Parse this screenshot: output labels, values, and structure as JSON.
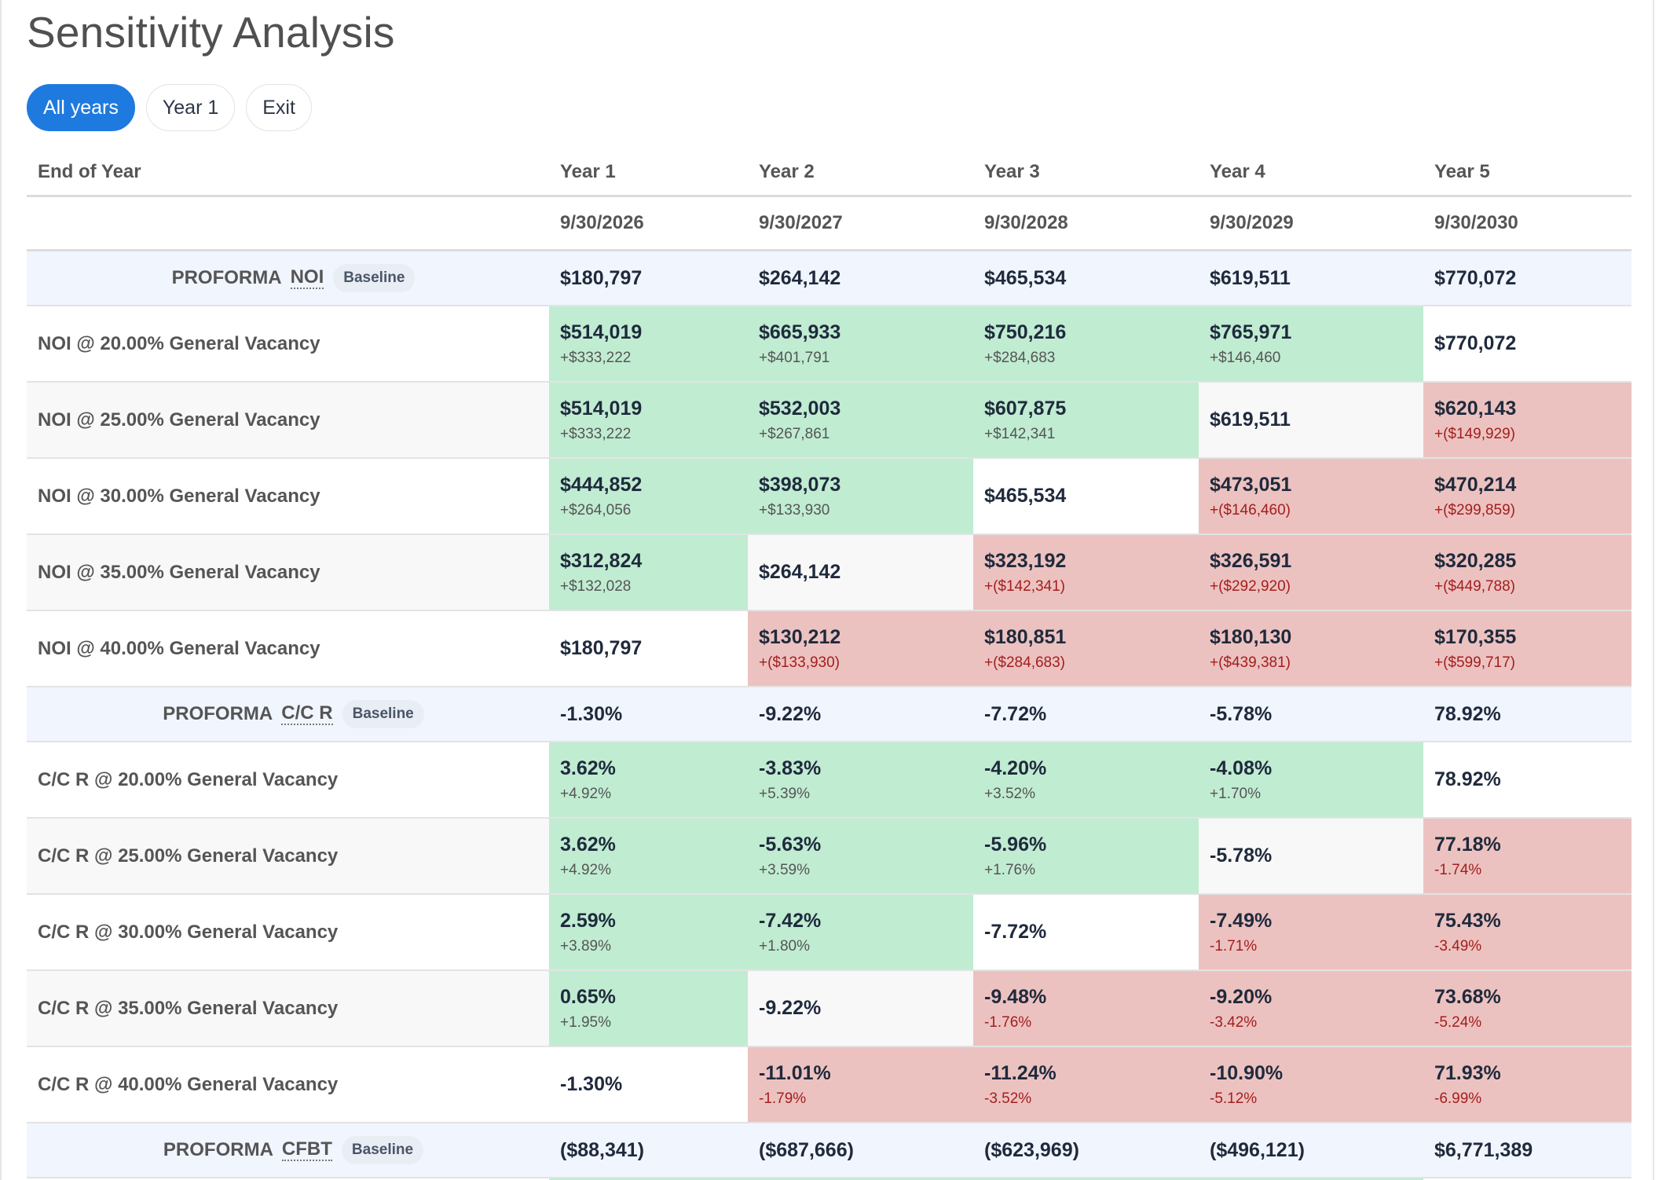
{
  "page": {
    "title": "Sensitivity Analysis"
  },
  "filters": [
    {
      "label": "All years",
      "active": true
    },
    {
      "label": "Year 1",
      "active": false
    },
    {
      "label": "Exit",
      "active": false
    }
  ],
  "table": {
    "header": {
      "label": "End of Year",
      "years": [
        "Year 1",
        "Year 2",
        "Year 3",
        "Year 4",
        "Year 5"
      ]
    },
    "dates": [
      "9/30/2026",
      "9/30/2027",
      "9/30/2028",
      "9/30/2029",
      "9/30/2030"
    ],
    "sections": [
      {
        "baseline": {
          "prefix": "PROFORMA",
          "metric": "NOI",
          "badge": "Baseline",
          "values": [
            "$180,797",
            "$264,142",
            "$465,534",
            "$619,511",
            "$770,072"
          ]
        },
        "rows": [
          {
            "label": "NOI @ 20.00% General Vacancy",
            "cells": [
              {
                "value": "$514,019",
                "delta": "+$333,222",
                "status": "positive"
              },
              {
                "value": "$665,933",
                "delta": "+$401,791",
                "status": "positive"
              },
              {
                "value": "$750,216",
                "delta": "+$284,683",
                "status": "positive"
              },
              {
                "value": "$765,971",
                "delta": "+$146,460",
                "status": "positive"
              },
              {
                "value": "$770,072",
                "delta": null,
                "status": "neutral"
              }
            ]
          },
          {
            "label": "NOI @ 25.00% General Vacancy",
            "cells": [
              {
                "value": "$514,019",
                "delta": "+$333,222",
                "status": "positive"
              },
              {
                "value": "$532,003",
                "delta": "+$267,861",
                "status": "positive"
              },
              {
                "value": "$607,875",
                "delta": "+$142,341",
                "status": "positive"
              },
              {
                "value": "$619,511",
                "delta": null,
                "status": "neutral"
              },
              {
                "value": "$620,143",
                "delta": "+($149,929)",
                "status": "negative"
              }
            ]
          },
          {
            "label": "NOI @ 30.00% General Vacancy",
            "cells": [
              {
                "value": "$444,852",
                "delta": "+$264,056",
                "status": "positive"
              },
              {
                "value": "$398,073",
                "delta": "+$133,930",
                "status": "positive"
              },
              {
                "value": "$465,534",
                "delta": null,
                "status": "neutral"
              },
              {
                "value": "$473,051",
                "delta": "+($146,460)",
                "status": "negative"
              },
              {
                "value": "$470,214",
                "delta": "+($299,859)",
                "status": "negative"
              }
            ]
          },
          {
            "label": "NOI @ 35.00% General Vacancy",
            "cells": [
              {
                "value": "$312,824",
                "delta": "+$132,028",
                "status": "positive"
              },
              {
                "value": "$264,142",
                "delta": null,
                "status": "neutral"
              },
              {
                "value": "$323,192",
                "delta": "+($142,341)",
                "status": "negative"
              },
              {
                "value": "$326,591",
                "delta": "+($292,920)",
                "status": "negative"
              },
              {
                "value": "$320,285",
                "delta": "+($449,788)",
                "status": "negative"
              }
            ]
          },
          {
            "label": "NOI @ 40.00% General Vacancy",
            "cells": [
              {
                "value": "$180,797",
                "delta": null,
                "status": "neutral"
              },
              {
                "value": "$130,212",
                "delta": "+($133,930)",
                "status": "negative"
              },
              {
                "value": "$180,851",
                "delta": "+($284,683)",
                "status": "negative"
              },
              {
                "value": "$180,130",
                "delta": "+($439,381)",
                "status": "negative"
              },
              {
                "value": "$170,355",
                "delta": "+($599,717)",
                "status": "negative"
              }
            ]
          }
        ]
      },
      {
        "baseline": {
          "prefix": "PROFORMA",
          "metric": "C/C R",
          "badge": "Baseline",
          "values": [
            "-1.30%",
            "-9.22%",
            "-7.72%",
            "-5.78%",
            "78.92%"
          ]
        },
        "rows": [
          {
            "label": "C/C R @ 20.00% General Vacancy",
            "cells": [
              {
                "value": "3.62%",
                "delta": "+4.92%",
                "status": "positive"
              },
              {
                "value": "-3.83%",
                "delta": "+5.39%",
                "status": "positive"
              },
              {
                "value": "-4.20%",
                "delta": "+3.52%",
                "status": "positive"
              },
              {
                "value": "-4.08%",
                "delta": "+1.70%",
                "status": "positive"
              },
              {
                "value": "78.92%",
                "delta": null,
                "status": "neutral"
              }
            ]
          },
          {
            "label": "C/C R @ 25.00% General Vacancy",
            "cells": [
              {
                "value": "3.62%",
                "delta": "+4.92%",
                "status": "positive"
              },
              {
                "value": "-5.63%",
                "delta": "+3.59%",
                "status": "positive"
              },
              {
                "value": "-5.96%",
                "delta": "+1.76%",
                "status": "positive"
              },
              {
                "value": "-5.78%",
                "delta": null,
                "status": "neutral"
              },
              {
                "value": "77.18%",
                "delta": "-1.74%",
                "status": "negative"
              }
            ]
          },
          {
            "label": "C/C R @ 30.00% General Vacancy",
            "cells": [
              {
                "value": "2.59%",
                "delta": "+3.89%",
                "status": "positive"
              },
              {
                "value": "-7.42%",
                "delta": "+1.80%",
                "status": "positive"
              },
              {
                "value": "-7.72%",
                "delta": null,
                "status": "neutral"
              },
              {
                "value": "-7.49%",
                "delta": "-1.71%",
                "status": "negative"
              },
              {
                "value": "75.43%",
                "delta": "-3.49%",
                "status": "negative"
              }
            ]
          },
          {
            "label": "C/C R @ 35.00% General Vacancy",
            "cells": [
              {
                "value": "0.65%",
                "delta": "+1.95%",
                "status": "positive"
              },
              {
                "value": "-9.22%",
                "delta": null,
                "status": "neutral"
              },
              {
                "value": "-9.48%",
                "delta": "-1.76%",
                "status": "negative"
              },
              {
                "value": "-9.20%",
                "delta": "-3.42%",
                "status": "negative"
              },
              {
                "value": "73.68%",
                "delta": "-5.24%",
                "status": "negative"
              }
            ]
          },
          {
            "label": "C/C R @ 40.00% General Vacancy",
            "cells": [
              {
                "value": "-1.30%",
                "delta": null,
                "status": "neutral"
              },
              {
                "value": "-11.01%",
                "delta": "-1.79%",
                "status": "negative"
              },
              {
                "value": "-11.24%",
                "delta": "-3.52%",
                "status": "negative"
              },
              {
                "value": "-10.90%",
                "delta": "-5.12%",
                "status": "negative"
              },
              {
                "value": "71.93%",
                "delta": "-6.99%",
                "status": "negative"
              }
            ]
          }
        ]
      },
      {
        "baseline": {
          "prefix": "PROFORMA",
          "metric": "CFBT",
          "badge": "Baseline",
          "values": [
            "($88,341)",
            "($687,666)",
            "($623,969)",
            "($496,121)",
            "$6,771,389"
          ]
        },
        "rows": []
      }
    ]
  },
  "colors": {
    "accent": "#1f7ae0",
    "positive_bg": "#c0ecd2",
    "negative_bg": "#ecc2c0",
    "negative_text": "#a31e1e",
    "baseline_bg": "#f1f5fe"
  }
}
